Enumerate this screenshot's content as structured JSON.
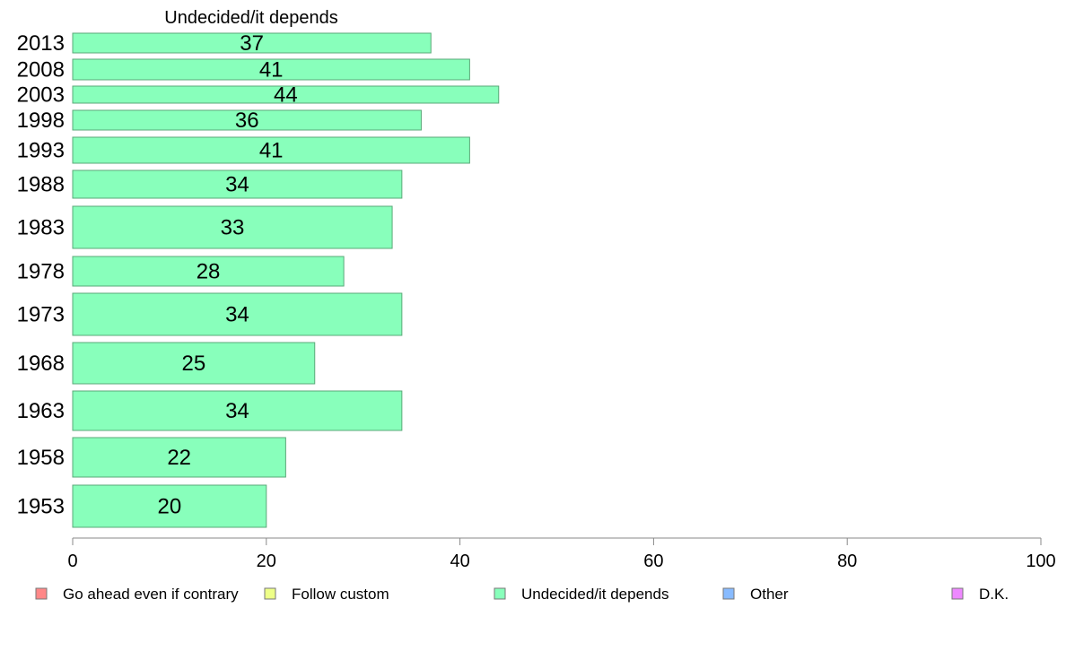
{
  "chart_data": {
    "type": "bar",
    "orientation": "horizontal",
    "title": "Undecided/it depends",
    "categories": [
      "2013",
      "2008",
      "2003",
      "1998",
      "1993",
      "1988",
      "1983",
      "1978",
      "1973",
      "1968",
      "1963",
      "1958",
      "1953"
    ],
    "series": [
      {
        "name": "Undecided/it depends",
        "color": "#88ffbb",
        "values": [
          37,
          41,
          44,
          36,
          41,
          34,
          33,
          28,
          34,
          25,
          34,
          22,
          20
        ],
        "value_labels": [
          "37",
          "41",
          "44",
          "36",
          "41",
          "34",
          "33",
          "28",
          "34",
          "25",
          "34",
          "22",
          "20"
        ]
      }
    ],
    "xlim": [
      0,
      100
    ],
    "xticks": [
      0,
      20,
      40,
      60,
      80,
      100
    ],
    "xtick_labels": [
      "0",
      "20",
      "40",
      "60",
      "80",
      "100"
    ],
    "xlabel": "",
    "ylabel": "",
    "grid": false,
    "legend": {
      "placement": "bottom",
      "entries": [
        {
          "label": "Go ahead even if contrary",
          "color": "#ff8888"
        },
        {
          "label": "Follow custom",
          "color": "#eeff88"
        },
        {
          "label": "Undecided/it depends",
          "color": "#88ffbb"
        },
        {
          "label": "Other",
          "color": "#88bbff"
        },
        {
          "label": "D.K.",
          "color": "#ee88ff"
        }
      ]
    }
  }
}
